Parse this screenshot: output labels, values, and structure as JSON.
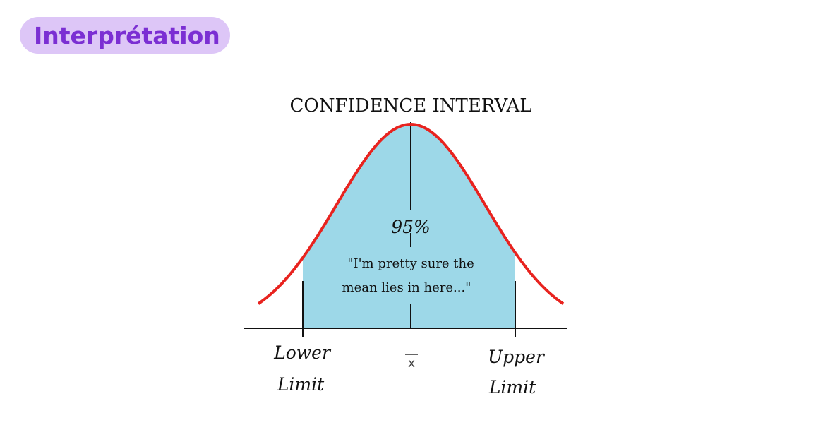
{
  "header": {
    "badge_label": "Interprétation"
  },
  "figure": {
    "title": "CONFIDENCE INTERVAL",
    "percent_label": "95%",
    "quote_line1": "\"I'm pretty sure the",
    "quote_line2": "mean lies in here...\"",
    "lower_label_line1": "Lower",
    "lower_label_line2": "Limit",
    "mean_label": "x",
    "upper_label_line1": "Upper",
    "upper_label_line2": "Limit",
    "colors": {
      "curve": "#e8231f",
      "fill": "#9dd8e8",
      "axis": "#111111",
      "badge_bg": "#ddc6f7",
      "badge_text": "#7b2fd3"
    }
  }
}
